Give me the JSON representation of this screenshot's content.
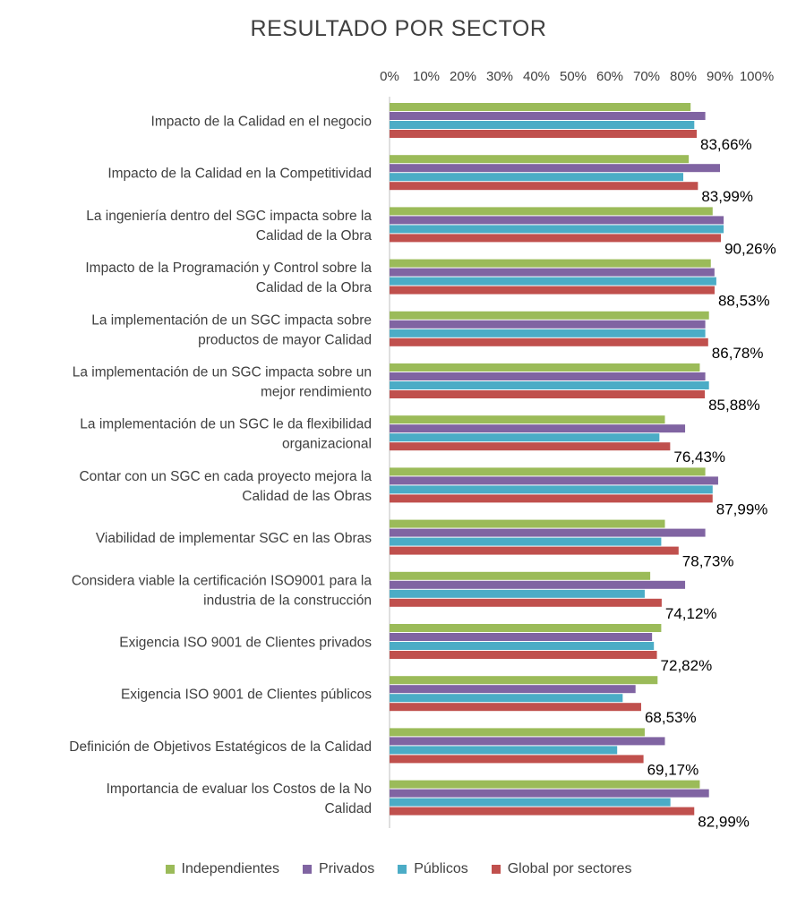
{
  "chart_data": {
    "type": "bar",
    "orientation": "horizontal",
    "title": "RESULTADO POR SECTOR",
    "xlim": [
      0,
      100
    ],
    "x_ticks": [
      "0%",
      "10%",
      "20%",
      "30%",
      "40%",
      "50%",
      "60%",
      "70%",
      "80%",
      "90%",
      "100%"
    ],
    "x_axis_position": "top",
    "grid": false,
    "legend_position": "bottom",
    "categories": [
      [
        "Impacto de la Calidad en el negocio"
      ],
      [
        "Impacto de la Calidad en la Competitividad"
      ],
      [
        "La ingeniería dentro del SGC impacta sobre la",
        "Calidad de la Obra"
      ],
      [
        "Impacto de la Programación y Control sobre la",
        "Calidad de la Obra"
      ],
      [
        "La implementación de un SGC impacta sobre",
        "productos de mayor Calidad"
      ],
      [
        "La implementación de un SGC impacta sobre un",
        "mejor rendimiento"
      ],
      [
        "La implementación de un SGC le da flexibilidad",
        "organizacional"
      ],
      [
        "Contar con un SGC en cada proyecto mejora la",
        "Calidad de las Obras"
      ],
      [
        "Viabilidad de implementar SGC en las Obras"
      ],
      [
        "Considera viable la certificación ISO9001 para la",
        "industria de la construcción"
      ],
      [
        "Exigencia ISO 9001 de Clientes privados"
      ],
      [
        "Exigencia ISO 9001 de Clientes públicos"
      ],
      [
        "Definición de Objetivos Estatégicos de la Calidad"
      ],
      [
        "Importancia de  evaluar los Costos de la No",
        "Calidad"
      ]
    ],
    "series": [
      {
        "name": "Independientes",
        "color": "#9BBB59",
        "values": [
          82,
          81.5,
          88,
          87.5,
          87,
          84.5,
          75,
          86,
          75,
          71,
          74,
          73,
          69.5,
          84.5
        ]
      },
      {
        "name": "Privados",
        "color": "#8064A2",
        "values": [
          86,
          90,
          91,
          88.5,
          86,
          86,
          80.5,
          89.5,
          86,
          80.5,
          71.5,
          67,
          75,
          87
        ]
      },
      {
        "name": "Públicos",
        "color": "#4BACC6",
        "values": [
          83,
          80,
          91,
          89,
          86,
          87,
          73.5,
          88,
          74,
          69.5,
          72,
          63.5,
          62,
          76.5
        ]
      },
      {
        "name": "Global por sectores",
        "color": "#C0504D",
        "values": [
          83.66,
          83.99,
          90.26,
          88.53,
          86.78,
          85.88,
          76.43,
          87.99,
          78.73,
          74.12,
          72.82,
          68.53,
          69.17,
          82.99
        ]
      }
    ],
    "data_labels": [
      "83,66%",
      "83,99%",
      "90,26%",
      "88,53%",
      "86,78%",
      "85,88%",
      "76,43%",
      "87,99%",
      "78,73%",
      "74,12%",
      "72,82%",
      "68,53%",
      "69,17%",
      "82,99%"
    ]
  }
}
